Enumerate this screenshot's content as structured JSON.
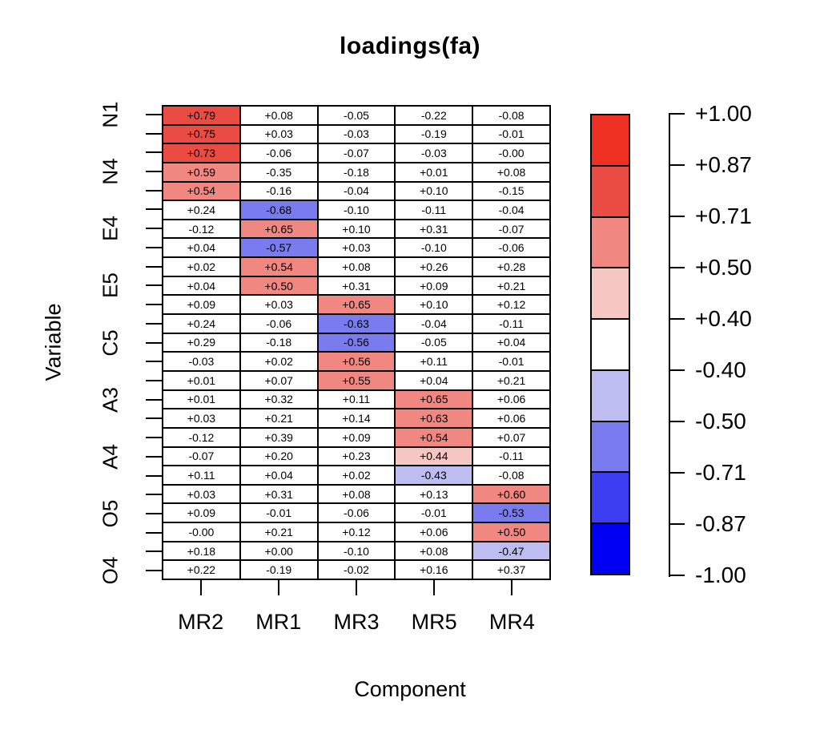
{
  "title": "loadings(fa)",
  "axes": {
    "x_label": "Component",
    "y_label": "Variable"
  },
  "chart_data": {
    "type": "heatmap",
    "title": "loadings(fa)",
    "xlabel": "Component",
    "ylabel": "Variable",
    "columns": [
      "MR2",
      "MR1",
      "MR3",
      "MR5",
      "MR4"
    ],
    "row_tick_labels": [
      "N1",
      "N4",
      "E4",
      "E5",
      "C5",
      "A3",
      "A4",
      "O5",
      "O4"
    ],
    "row_label_positions": [
      1,
      4,
      7,
      10,
      13,
      16,
      19,
      22,
      25
    ],
    "n_rows": 25,
    "n_cols": 5,
    "values": [
      [
        "+0.79",
        "+0.08",
        "-0.05",
        "-0.22",
        "-0.08"
      ],
      [
        "+0.75",
        "+0.03",
        "-0.03",
        "-0.19",
        "-0.01"
      ],
      [
        "+0.73",
        "-0.06",
        "-0.07",
        "-0.03",
        "-0.00"
      ],
      [
        "+0.59",
        "-0.35",
        "-0.18",
        "+0.01",
        "+0.08"
      ],
      [
        "+0.54",
        "-0.16",
        "-0.04",
        "+0.10",
        "-0.15"
      ],
      [
        "+0.24",
        "-0.68",
        "-0.10",
        "-0.11",
        "-0.04"
      ],
      [
        "-0.12",
        "+0.65",
        "+0.10",
        "+0.31",
        "-0.07"
      ],
      [
        "+0.04",
        "-0.57",
        "+0.03",
        "-0.10",
        "-0.06"
      ],
      [
        "+0.02",
        "+0.54",
        "+0.08",
        "+0.26",
        "+0.28"
      ],
      [
        "+0.04",
        "+0.50",
        "+0.31",
        "+0.09",
        "+0.21"
      ],
      [
        "+0.09",
        "+0.03",
        "+0.65",
        "+0.10",
        "+0.12"
      ],
      [
        "+0.24",
        "-0.06",
        "-0.63",
        "-0.04",
        "-0.11"
      ],
      [
        "+0.29",
        "-0.18",
        "-0.56",
        "-0.05",
        "+0.04"
      ],
      [
        "-0.03",
        "+0.02",
        "+0.56",
        "+0.11",
        "-0.01"
      ],
      [
        "+0.01",
        "+0.07",
        "+0.55",
        "+0.04",
        "+0.21"
      ],
      [
        "+0.01",
        "+0.32",
        "+0.11",
        "+0.65",
        "+0.06"
      ],
      [
        "+0.03",
        "+0.21",
        "+0.14",
        "+0.63",
        "+0.06"
      ],
      [
        "-0.12",
        "+0.39",
        "+0.09",
        "+0.54",
        "+0.07"
      ],
      [
        "-0.07",
        "+0.20",
        "+0.23",
        "+0.44",
        "-0.11"
      ],
      [
        "+0.11",
        "+0.04",
        "+0.02",
        "-0.43",
        "-0.08"
      ],
      [
        "+0.03",
        "+0.31",
        "+0.08",
        "+0.13",
        "+0.60"
      ],
      [
        "+0.09",
        "-0.01",
        "-0.06",
        "-0.01",
        "-0.53"
      ],
      [
        "-0.00",
        "+0.21",
        "+0.12",
        "+0.06",
        "+0.50"
      ],
      [
        "+0.18",
        "+0.00",
        "-0.10",
        "+0.08",
        "-0.47"
      ],
      [
        "+0.22",
        "-0.19",
        "-0.02",
        "+0.16",
        "+0.37"
      ]
    ],
    "value_range": [
      -1.0,
      1.0
    ],
    "color_bins": {
      "breaks": [
        1.0,
        0.87,
        0.71,
        0.5,
        0.4,
        -0.4,
        -0.5,
        -0.71,
        -0.87,
        -1.0
      ],
      "colors": [
        "#ee3123",
        "#ea4c43",
        "#f08781",
        "#f5c6c2",
        "#ffffff",
        "#bdbdf2",
        "#7b7bf0",
        "#3d3df2",
        "#0000f2"
      ]
    },
    "legend_tick_labels": [
      "+1.00",
      "+0.87",
      "+0.71",
      "+0.50",
      "+0.40",
      "-0.40",
      "-0.50",
      "-0.71",
      "-0.87",
      "-1.00"
    ]
  }
}
